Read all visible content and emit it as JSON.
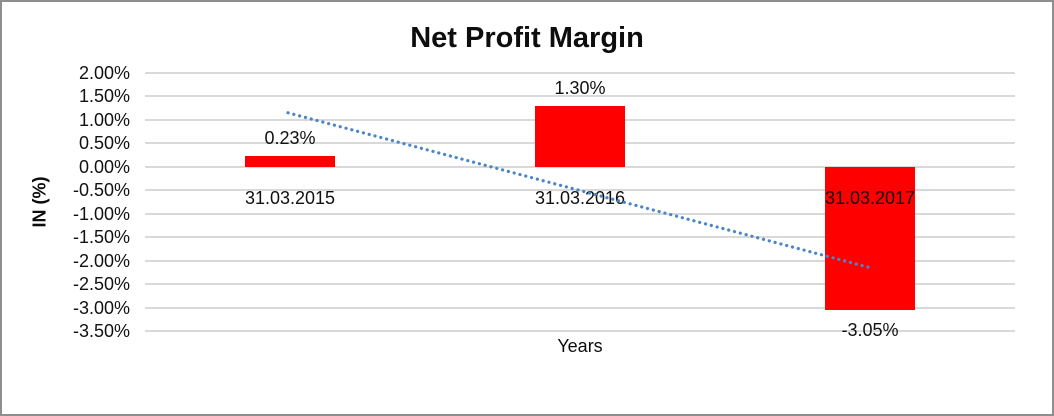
{
  "chart_data": {
    "type": "bar",
    "title": "Net Profit Margin",
    "xlabel": "Years",
    "ylabel": "IN (%)",
    "categories": [
      "31.03.2015",
      "31.03.2016",
      "31.03.2017"
    ],
    "values": [
      0.23,
      1.3,
      -3.05
    ],
    "data_labels": [
      "0.23%",
      "1.30%",
      "-3.05%"
    ],
    "yticks": [
      2.0,
      1.5,
      1.0,
      0.5,
      0.0,
      -0.5,
      -1.0,
      -1.5,
      -2.0,
      -2.5,
      -3.0,
      -3.5
    ],
    "ytick_labels": [
      "2.00%",
      "1.50%",
      "1.00%",
      "0.50%",
      "0.00%",
      "-0.50%",
      "-1.00%",
      "-1.50%",
      "-2.00%",
      "-2.50%",
      "-3.00%",
      "-3.50%"
    ],
    "ylim": [
      -3.5,
      2.0
    ],
    "grid": true,
    "legend": "none",
    "bar_color": "#FF0000",
    "trendline": {
      "type": "linear",
      "style": "dotted",
      "color": "#4A86C6",
      "fitted_values": [
        1.13,
        -0.51,
        -2.15
      ]
    }
  }
}
